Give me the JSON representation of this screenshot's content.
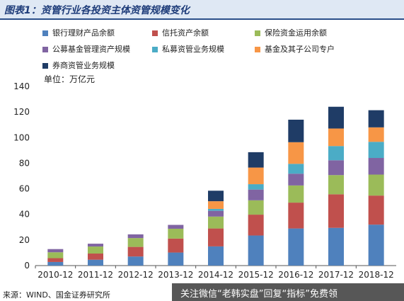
{
  "title": "图表1：资管行业各投资主体资管规模变化",
  "unit_label": "单位：万亿元",
  "source": "来源：WIND、国金证券研究所",
  "watermark": "关注微信“老韩实盘”回复“指标”免费领",
  "chart_data": {
    "type": "bar",
    "stacked": true,
    "categories": [
      "2010-12",
      "2011-12",
      "2012-12",
      "2013-12",
      "2014-12",
      "2015-12",
      "2016-12",
      "2017-12",
      "2018-12"
    ],
    "ylim": [
      0,
      140
    ],
    "yticks": [
      0,
      20,
      40,
      60,
      80,
      100,
      120,
      140
    ],
    "legend_position": "top",
    "grid": false,
    "series": [
      {
        "name": "银行理财产品余额",
        "color": "#4f81bd",
        "values": [
          2.8,
          4.6,
          7.1,
          10.2,
          15.0,
          23.5,
          29.0,
          29.5,
          32.0
        ]
      },
      {
        "name": "信托资产余额",
        "color": "#c0504d",
        "values": [
          3.0,
          4.8,
          7.5,
          10.9,
          14.0,
          16.3,
          20.2,
          26.2,
          22.7
        ]
      },
      {
        "name": "保险资金运用余额",
        "color": "#9bbb59",
        "values": [
          4.6,
          5.5,
          6.9,
          7.7,
          9.3,
          11.2,
          13.4,
          15.0,
          16.4
        ]
      },
      {
        "name": "公募基金管理资产规模",
        "color": "#8064a2",
        "values": [
          2.5,
          2.2,
          2.9,
          3.0,
          4.5,
          8.4,
          9.2,
          11.6,
          13.0
        ]
      },
      {
        "name": "私募资管业务规模",
        "color": "#4bacc6",
        "values": [
          0.0,
          0.0,
          0.0,
          0.0,
          1.5,
          4.2,
          7.7,
          11.1,
          12.6
        ]
      },
      {
        "name": "基金及其子公司专户",
        "color": "#f79646",
        "values": [
          0.0,
          0.0,
          0.0,
          0.0,
          6.0,
          13.0,
          16.9,
          13.7,
          11.3
        ]
      },
      {
        "name": "券商资管业务规模",
        "color": "#1f3c66",
        "values": [
          0.0,
          0.0,
          0.0,
          0.0,
          8.2,
          12.0,
          17.6,
          17.0,
          13.4
        ]
      }
    ]
  }
}
